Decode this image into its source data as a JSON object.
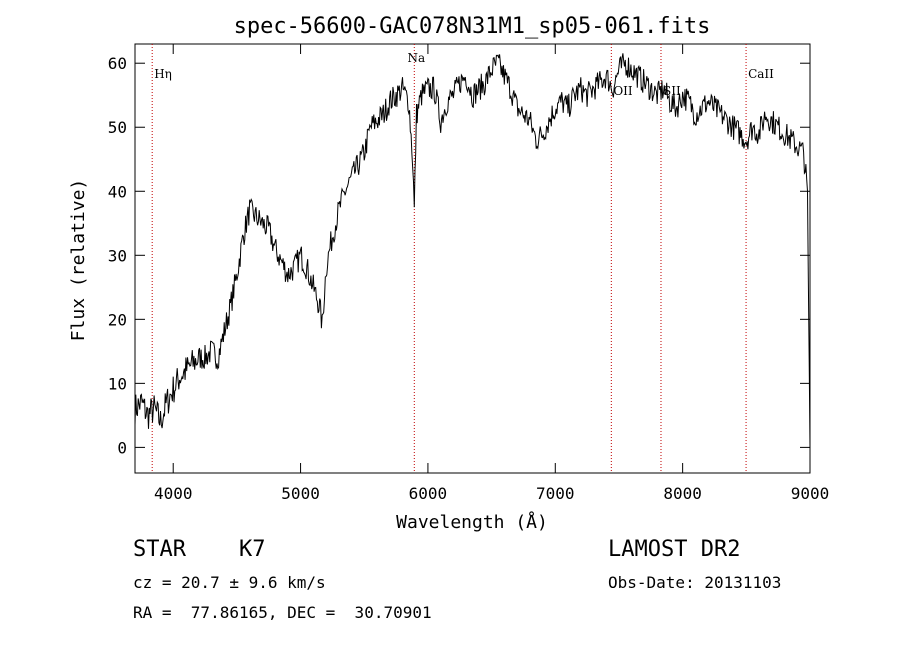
{
  "chart_data": {
    "type": "line",
    "title": "spec-56600-GAC078N31M1_sp05-061.fits",
    "xlabel": "Wavelength (Å)",
    "ylabel": "Flux (relative)",
    "xlim": [
      3700,
      9000
    ],
    "ylim": [
      -4,
      63
    ],
    "xticks": [
      4000,
      5000,
      6000,
      7000,
      8000,
      9000
    ],
    "yticks": [
      0,
      10,
      20,
      30,
      40,
      50,
      60
    ],
    "grid": false,
    "series": [
      {
        "x": [
          3700,
          3750,
          3800,
          3850,
          3900,
          3950,
          4000,
          4050,
          4100,
          4150,
          4200,
          4250,
          4300,
          4350,
          4400,
          4450,
          4500,
          4550,
          4600,
          4650,
          4700,
          4750,
          4800,
          4850,
          4900,
          4950,
          5000,
          5050,
          5100,
          5150,
          5170,
          5200,
          5250,
          5300,
          5350,
          5400,
          5450,
          5500,
          5550,
          5600,
          5650,
          5700,
          5750,
          5800,
          5850,
          5880,
          5893,
          5910,
          5950,
          6000,
          6050,
          6100,
          6150,
          6200,
          6250,
          6300,
          6350,
          6400,
          6450,
          6500,
          6550,
          6600,
          6650,
          6700,
          6750,
          6800,
          6850,
          6900,
          6950,
          7000,
          7050,
          7100,
          7150,
          7200,
          7250,
          7300,
          7350,
          7400,
          7450,
          7500,
          7550,
          7600,
          7650,
          7700,
          7750,
          7800,
          7850,
          7900,
          7950,
          8000,
          8050,
          8100,
          8150,
          8200,
          8250,
          8300,
          8350,
          8400,
          8450,
          8500,
          8550,
          8600,
          8650,
          8700,
          8750,
          8800,
          8850,
          8900,
          8950,
          8980,
          9000
        ],
        "y": [
          6,
          7,
          5,
          6,
          4,
          7,
          9,
          11,
          12,
          13,
          14,
          14,
          15,
          14,
          18,
          22,
          27,
          33,
          37,
          36,
          35,
          34,
          31,
          29,
          27,
          28,
          30,
          28,
          25,
          22,
          19,
          28,
          33,
          37,
          40,
          42,
          44,
          46,
          50,
          51,
          52,
          54,
          55,
          56,
          54,
          45,
          37,
          52,
          55,
          56,
          56,
          51,
          54,
          55,
          57,
          58,
          55,
          56,
          57,
          59,
          60,
          58,
          56,
          53,
          52,
          51,
          48,
          49,
          51,
          53,
          54,
          53,
          55,
          56,
          55,
          56,
          57,
          58,
          56,
          59,
          60,
          59,
          58,
          57,
          56,
          55,
          56,
          54,
          53,
          55,
          54,
          52,
          53,
          54,
          53,
          52,
          51,
          50,
          49,
          48,
          50,
          49,
          52,
          51,
          50,
          49,
          48,
          47,
          46,
          40,
          0
        ]
      }
    ],
    "lines": [
      {
        "label": "Hη",
        "x": 3835
      },
      {
        "label": "Na",
        "x": 5893
      },
      {
        "label": "OII",
        "x": 7440
      },
      {
        "label": "SII",
        "x": 7830
      },
      {
        "label": "CaII",
        "x": 8498
      }
    ]
  },
  "info": {
    "class_line": "STAR    K7",
    "cz_line": "cz = 20.7 ± 9.6 km/s",
    "coord_line": "RA =  77.86165, DEC =  30.70901",
    "survey": "LAMOST DR2",
    "obs_date": "Obs-Date: 20131103"
  }
}
